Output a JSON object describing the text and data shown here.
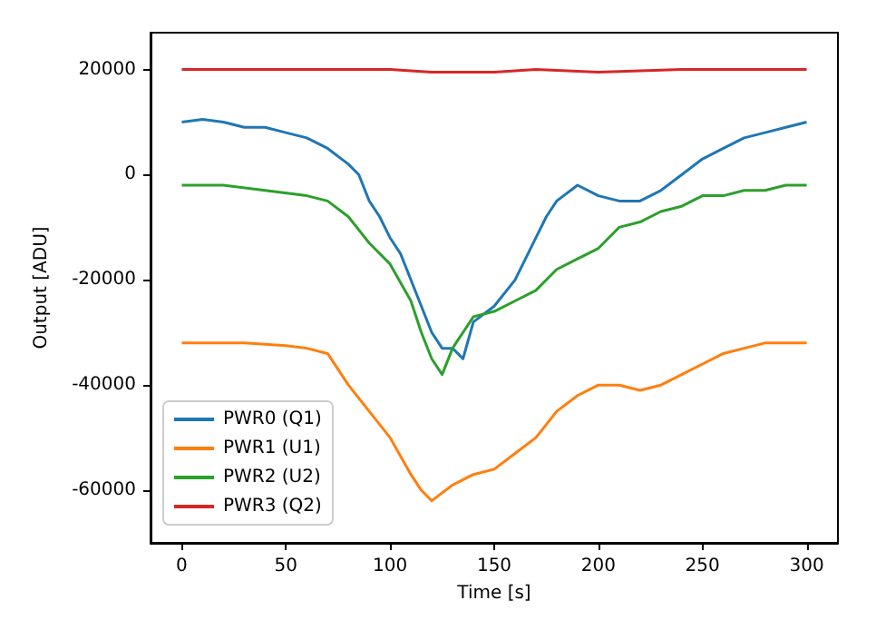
{
  "chart_data": {
    "type": "line",
    "xlabel": "Time [s]",
    "ylabel": "Output [ADU]",
    "xlim": [
      -15,
      315
    ],
    "xticks": [
      0,
      50,
      100,
      150,
      200,
      250,
      300
    ],
    "ylim": [
      -70000,
      27000
    ],
    "yticks": [
      -60000,
      -40000,
      -20000,
      0,
      20000
    ],
    "legend": "bottom left",
    "marker": "none",
    "line_style": "solid",
    "series": [
      {
        "name": "PWR0 (Q1)",
        "color": "#1f77b4",
        "x": [
          0,
          10,
          20,
          30,
          40,
          50,
          60,
          70,
          80,
          85,
          90,
          95,
          100,
          105,
          110,
          115,
          120,
          125,
          130,
          135,
          140,
          150,
          160,
          170,
          175,
          180,
          190,
          200,
          210,
          220,
          230,
          240,
          250,
          260,
          270,
          280,
          290,
          300
        ],
        "values": [
          10000,
          10500,
          10000,
          9000,
          9000,
          8000,
          7000,
          5000,
          2000,
          0,
          -5000,
          -8000,
          -12000,
          -15000,
          -20000,
          -25000,
          -30000,
          -33000,
          -33000,
          -35000,
          -28000,
          -25000,
          -20000,
          -12000,
          -8000,
          -5000,
          -2000,
          -4000,
          -5000,
          -5000,
          -3000,
          0,
          3000,
          5000,
          7000,
          8000,
          9000,
          10000
        ]
      },
      {
        "name": "PWR1 (U1)",
        "color": "#ff7f0e",
        "x": [
          0,
          30,
          50,
          60,
          70,
          80,
          90,
          100,
          110,
          115,
          120,
          130,
          140,
          150,
          160,
          170,
          180,
          190,
          200,
          210,
          220,
          230,
          240,
          250,
          260,
          270,
          280,
          290,
          300
        ],
        "values": [
          -32000,
          -32000,
          -32500,
          -33000,
          -34000,
          -40000,
          -45000,
          -50000,
          -57000,
          -60000,
          -62000,
          -59000,
          -57000,
          -56000,
          -53000,
          -50000,
          -45000,
          -42000,
          -40000,
          -40000,
          -41000,
          -40000,
          -38000,
          -36000,
          -34000,
          -33000,
          -32000,
          -32000,
          -32000
        ]
      },
      {
        "name": "PWR2 (U2)",
        "color": "#2ca02c",
        "x": [
          0,
          20,
          40,
          60,
          70,
          80,
          90,
          100,
          110,
          115,
          120,
          125,
          130,
          140,
          150,
          160,
          170,
          180,
          190,
          200,
          210,
          220,
          230,
          240,
          250,
          260,
          270,
          280,
          290,
          300
        ],
        "values": [
          -2000,
          -2000,
          -3000,
          -4000,
          -5000,
          -8000,
          -13000,
          -17000,
          -24000,
          -30000,
          -35000,
          -38000,
          -33000,
          -27000,
          -26000,
          -24000,
          -22000,
          -18000,
          -16000,
          -14000,
          -10000,
          -9000,
          -7000,
          -6000,
          -4000,
          -4000,
          -3000,
          -3000,
          -2000,
          -2000
        ]
      },
      {
        "name": "PWR3 (Q2)",
        "color": "#d62728",
        "x": [
          0,
          50,
          100,
          120,
          150,
          170,
          200,
          240,
          300
        ],
        "values": [
          20000,
          20000,
          20000,
          19500,
          19500,
          20000,
          19500,
          20000,
          20000
        ]
      }
    ]
  }
}
